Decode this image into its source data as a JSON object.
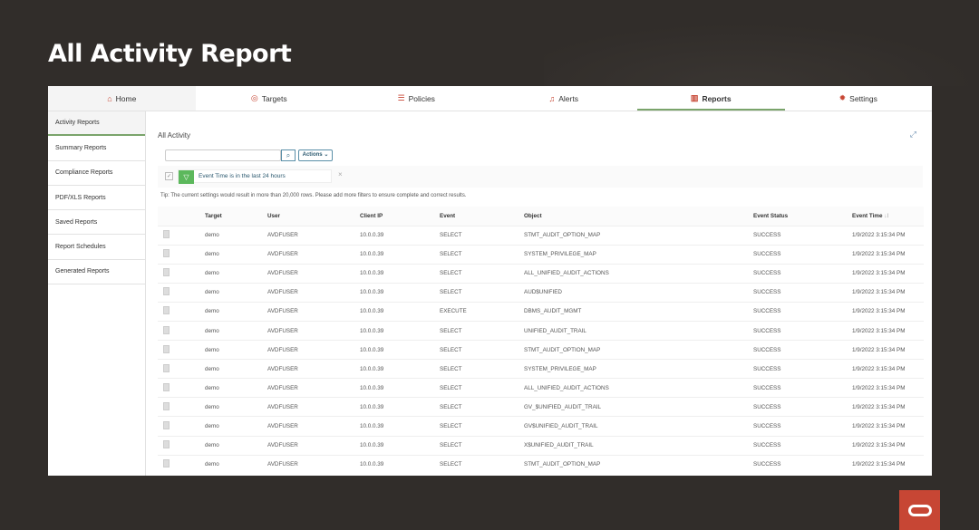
{
  "slide_title": "All Activity Report",
  "nav": [
    {
      "label": "Home",
      "icon": "home-icon"
    },
    {
      "label": "Targets",
      "icon": "target-icon"
    },
    {
      "label": "Policies",
      "icon": "policy-icon"
    },
    {
      "label": "Alerts",
      "icon": "bell-icon"
    },
    {
      "label": "Reports",
      "icon": "bar-chart-icon"
    },
    {
      "label": "Settings",
      "icon": "gear-icon"
    }
  ],
  "sidebar": [
    "Activity Reports",
    "Summary Reports",
    "Compliance Reports",
    "PDF/XLS Reports",
    "Saved Reports",
    "Report Schedules",
    "Generated Reports"
  ],
  "main": {
    "heading": "All Activity",
    "search_placeholder": "",
    "actions_label": "Actions",
    "filter_text": "Event Time is in the last 24 hours",
    "tip": "Tip: The current settings would result in more than 20,000 rows. Please add more filters to ensure complete and correct results."
  },
  "table": {
    "headers": [
      "",
      "Target",
      "User",
      "Client IP",
      "Event",
      "Object",
      "Event Status",
      "Event Time"
    ],
    "rows": [
      [
        "demo",
        "AVDFUSER",
        "10.0.0.39",
        "SELECT",
        "STMT_AUDIT_OPTION_MAP",
        "SUCCESS",
        "1/9/2022 3:15:34 PM"
      ],
      [
        "demo",
        "AVDFUSER",
        "10.0.0.39",
        "SELECT",
        "SYSTEM_PRIVILEGE_MAP",
        "SUCCESS",
        "1/9/2022 3:15:34 PM"
      ],
      [
        "demo",
        "AVDFUSER",
        "10.0.0.39",
        "SELECT",
        "ALL_UNIFIED_AUDIT_ACTIONS",
        "SUCCESS",
        "1/9/2022 3:15:34 PM"
      ],
      [
        "demo",
        "AVDFUSER",
        "10.0.0.39",
        "SELECT",
        "AUD$UNIFIED",
        "SUCCESS",
        "1/9/2022 3:15:34 PM"
      ],
      [
        "demo",
        "AVDFUSER",
        "10.0.0.39",
        "EXECUTE",
        "DBMS_AUDIT_MGMT",
        "SUCCESS",
        "1/9/2022 3:15:34 PM"
      ],
      [
        "demo",
        "AVDFUSER",
        "10.0.0.39",
        "SELECT",
        "UNIFIED_AUDIT_TRAIL",
        "SUCCESS",
        "1/9/2022 3:15:34 PM"
      ],
      [
        "demo",
        "AVDFUSER",
        "10.0.0.39",
        "SELECT",
        "STMT_AUDIT_OPTION_MAP",
        "SUCCESS",
        "1/9/2022 3:15:34 PM"
      ],
      [
        "demo",
        "AVDFUSER",
        "10.0.0.39",
        "SELECT",
        "SYSTEM_PRIVILEGE_MAP",
        "SUCCESS",
        "1/9/2022 3:15:34 PM"
      ],
      [
        "demo",
        "AVDFUSER",
        "10.0.0.39",
        "SELECT",
        "ALL_UNIFIED_AUDIT_ACTIONS",
        "SUCCESS",
        "1/9/2022 3:15:34 PM"
      ],
      [
        "demo",
        "AVDFUSER",
        "10.0.0.39",
        "SELECT",
        "GV_$UNIFIED_AUDIT_TRAIL",
        "SUCCESS",
        "1/9/2022 3:15:34 PM"
      ],
      [
        "demo",
        "AVDFUSER",
        "10.0.0.39",
        "SELECT",
        "GV$UNIFIED_AUDIT_TRAIL",
        "SUCCESS",
        "1/9/2022 3:15:34 PM"
      ],
      [
        "demo",
        "AVDFUSER",
        "10.0.0.39",
        "SELECT",
        "X$UNIFIED_AUDIT_TRAIL",
        "SUCCESS",
        "1/9/2022 3:15:34 PM"
      ],
      [
        "demo",
        "AVDFUSER",
        "10.0.0.39",
        "SELECT",
        "STMT_AUDIT_OPTION_MAP",
        "SUCCESS",
        "1/9/2022 3:15:34 PM"
      ]
    ]
  },
  "colors": {
    "accent": "#c74634",
    "active_tab": "#7aa46b",
    "filter": "#5cb85c",
    "background": "#312d2a"
  }
}
